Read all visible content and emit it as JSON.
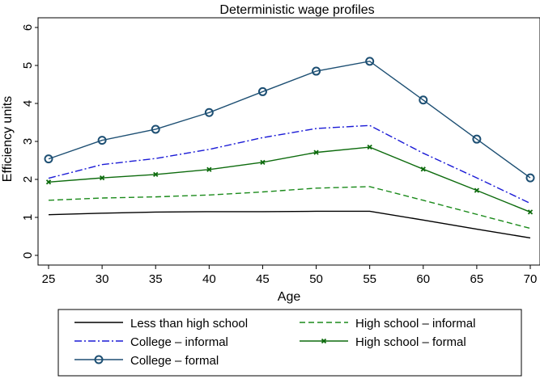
{
  "chart_data": {
    "type": "line",
    "title": "Deterministic wage profiles",
    "xlabel": "Age",
    "ylabel": "Efficiency units",
    "x": [
      25,
      30,
      35,
      40,
      45,
      50,
      55,
      60,
      65,
      70
    ],
    "xlim": [
      25,
      70
    ],
    "ylim": [
      0,
      6
    ],
    "xticks": [
      25,
      30,
      35,
      40,
      45,
      50,
      55,
      60,
      65,
      70
    ],
    "yticks": [
      0,
      1,
      2,
      3,
      4,
      5,
      6
    ],
    "grid": false,
    "legend_position": "bottom",
    "series": [
      {
        "name": "Less than high school",
        "style": "solid",
        "marker": "none",
        "color": "#000000",
        "values": [
          1.07,
          1.11,
          1.14,
          1.15,
          1.15,
          1.16,
          1.16,
          0.93,
          0.69,
          0.46
        ]
      },
      {
        "name": "High school – informal",
        "style": "dashed",
        "marker": "none",
        "color": "#1a8a1a",
        "values": [
          1.45,
          1.51,
          1.54,
          1.59,
          1.67,
          1.77,
          1.81,
          1.45,
          1.08,
          0.71
        ]
      },
      {
        "name": "College – informal",
        "style": "dashdot",
        "marker": "none",
        "color": "#1a1ad6",
        "values": [
          2.03,
          2.39,
          2.55,
          2.79,
          3.1,
          3.34,
          3.42,
          2.69,
          2.04,
          1.37
        ]
      },
      {
        "name": "High school – formal",
        "style": "solid",
        "marker": "x",
        "color": "#0d6b0d",
        "values": [
          1.93,
          2.04,
          2.13,
          2.26,
          2.45,
          2.71,
          2.85,
          2.27,
          1.71,
          1.14
        ]
      },
      {
        "name": "College – formal",
        "style": "solid",
        "marker": "circle",
        "color": "#1d4f73",
        "values": [
          2.54,
          3.03,
          3.32,
          3.76,
          4.31,
          4.85,
          5.11,
          4.09,
          3.06,
          2.04
        ]
      }
    ]
  }
}
